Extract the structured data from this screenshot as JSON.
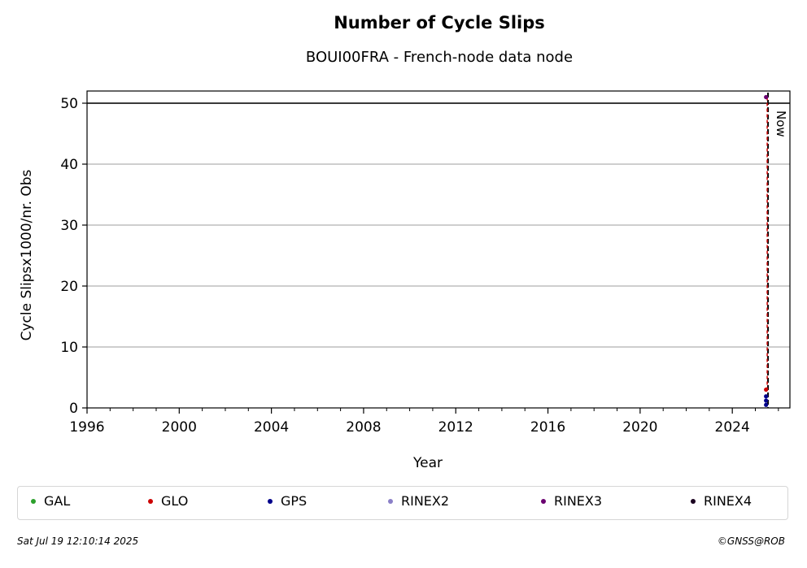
{
  "chart_data": {
    "type": "scatter",
    "title": "Number of Cycle Slips",
    "subtitle": "BOUI00FRA - French-node data node",
    "xlabel": "Year",
    "ylabel": "Cycle Slipsx1000/nr. Obs",
    "xlim": [
      1996,
      2026.5
    ],
    "ylim": [
      0,
      52
    ],
    "x_ticks": [
      1996,
      2000,
      2004,
      2008,
      2012,
      2016,
      2020,
      2024
    ],
    "y_ticks": [
      0,
      10,
      20,
      30,
      40,
      50
    ],
    "grid": "horizontal",
    "reference_line_y": 50,
    "now_label": "Now",
    "now_x": 2025.55,
    "legend_placement": "bottom",
    "series": [
      {
        "name": "GAL",
        "color": "#2ca02c",
        "points": []
      },
      {
        "name": "GLO",
        "color": "#cc0000",
        "points": [
          [
            2025.5,
            3
          ]
        ]
      },
      {
        "name": "GPS",
        "color": "#00008b",
        "points": [
          [
            2025.5,
            0.5
          ],
          [
            2025.5,
            1.2
          ],
          [
            2025.5,
            1.9
          ]
        ]
      },
      {
        "name": "RINEX2",
        "color": "#8a7fc7",
        "points": []
      },
      {
        "name": "RINEX3",
        "color": "#6a0070",
        "points": [
          [
            2025.5,
            51
          ]
        ]
      },
      {
        "name": "RINEX4",
        "color": "#1a0020",
        "points": []
      }
    ]
  },
  "footer": {
    "timestamp": "Sat Jul 19 12:10:14 2025",
    "copyright": "©GNSS@ROB"
  }
}
